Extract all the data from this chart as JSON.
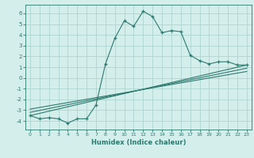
{
  "xlabel": "Humidex (Indice chaleur)",
  "line1_x": [
    0,
    1,
    2,
    3,
    4,
    5,
    6,
    7,
    8,
    9,
    10,
    11,
    12,
    13,
    14,
    15,
    16,
    17,
    18,
    19,
    20,
    21,
    22,
    23
  ],
  "line1_y": [
    -3.5,
    -3.8,
    -3.7,
    -3.8,
    -4.2,
    -3.8,
    -3.8,
    -2.5,
    1.3,
    3.7,
    5.3,
    4.8,
    6.2,
    5.7,
    4.2,
    4.4,
    4.3,
    2.1,
    1.6,
    1.3,
    1.5,
    1.5,
    1.2,
    1.2
  ],
  "line2_x": [
    0,
    23
  ],
  "line2_y": [
    -3.5,
    1.2
  ],
  "line3_x": [
    0,
    23
  ],
  "line3_y": [
    -3.2,
    0.9
  ],
  "line4_x": [
    0,
    23
  ],
  "line4_y": [
    -2.9,
    0.6
  ],
  "color": "#2d7a6e",
  "bg_color": "#d4eeec",
  "grid_color": "#aed4d0",
  "ylim": [
    -4.8,
    6.8
  ],
  "xlim": [
    -0.5,
    23.5
  ],
  "yticks": [
    -4,
    -3,
    -2,
    -1,
    0,
    1,
    2,
    3,
    4,
    5,
    6
  ],
  "xticks": [
    0,
    1,
    2,
    3,
    4,
    5,
    6,
    7,
    8,
    9,
    10,
    11,
    12,
    13,
    14,
    15,
    16,
    17,
    18,
    19,
    20,
    21,
    22,
    23
  ]
}
